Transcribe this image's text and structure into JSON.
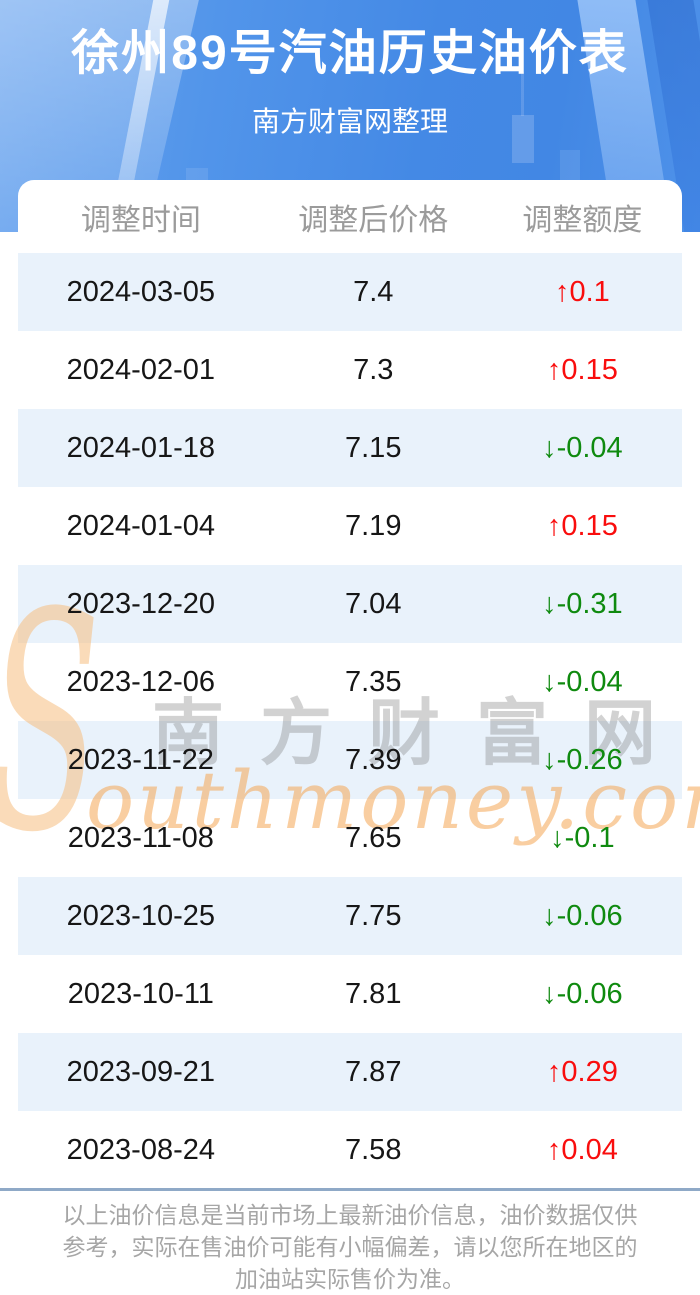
{
  "page": {
    "title": "徐州89号汽油历史油价表",
    "subtitle": "南方财富网整理"
  },
  "table": {
    "columns": [
      "调整时间",
      "调整后价格",
      "调整额度"
    ],
    "up_arrow": "↑",
    "down_arrow": "↓",
    "rows": [
      {
        "date": "2024-03-05",
        "price": "7.4",
        "change": "0.1",
        "direction": "up"
      },
      {
        "date": "2024-02-01",
        "price": "7.3",
        "change": "0.15",
        "direction": "up"
      },
      {
        "date": "2024-01-18",
        "price": "7.15",
        "change": "-0.04",
        "direction": "down"
      },
      {
        "date": "2024-01-04",
        "price": "7.19",
        "change": "0.15",
        "direction": "up"
      },
      {
        "date": "2023-12-20",
        "price": "7.04",
        "change": "-0.31",
        "direction": "down"
      },
      {
        "date": "2023-12-06",
        "price": "7.35",
        "change": "-0.04",
        "direction": "down"
      },
      {
        "date": "2023-11-22",
        "price": "7.39",
        "change": "-0.26",
        "direction": "down"
      },
      {
        "date": "2023-11-08",
        "price": "7.65",
        "change": "-0.1",
        "direction": "down"
      },
      {
        "date": "2023-10-25",
        "price": "7.75",
        "change": "-0.06",
        "direction": "down"
      },
      {
        "date": "2023-10-11",
        "price": "7.81",
        "change": "-0.06",
        "direction": "down"
      },
      {
        "date": "2023-09-21",
        "price": "7.87",
        "change": "0.29",
        "direction": "up"
      },
      {
        "date": "2023-08-24",
        "price": "7.58",
        "change": "0.04",
        "direction": "up"
      }
    ]
  },
  "watermark": {
    "initial": "S",
    "cn": "南方财富网",
    "en": "outhmoney.com"
  },
  "footer": {
    "lines": [
      "以上油价信息是当前市场上最新油价信息，油价数据仅供",
      "参考，实际在售油价可能有小幅偏差，请以您所在地区的",
      "加油站实际售价为准。"
    ]
  },
  "colors": {
    "banner_blue": "#4a8ee8",
    "row_alt_blue": "#e9f2fb",
    "up_red": "#f90d0d",
    "down_green": "#0f8a0f",
    "divider_blue_gray": "#8fa9c7",
    "column_header_gray": "#9b9b9b",
    "footer_gray": "#a6a6a6",
    "watermark_orange": "#f4a654",
    "watermark_gray": "#9a9a9a"
  },
  "chart_data": {
    "type": "table",
    "title": "徐州89号汽油历史油价表",
    "subtitle": "南方财富网整理",
    "columns": [
      "调整时间",
      "调整后价格",
      "调整额度"
    ],
    "rows": [
      [
        "2024-03-05",
        7.4,
        0.1
      ],
      [
        "2024-02-01",
        7.3,
        0.15
      ],
      [
        "2024-01-18",
        7.15,
        -0.04
      ],
      [
        "2024-01-04",
        7.19,
        0.15
      ],
      [
        "2023-12-20",
        7.04,
        -0.31
      ],
      [
        "2023-12-06",
        7.35,
        -0.04
      ],
      [
        "2023-11-22",
        7.39,
        -0.26
      ],
      [
        "2023-11-08",
        7.65,
        -0.1
      ],
      [
        "2023-10-25",
        7.75,
        -0.06
      ],
      [
        "2023-10-11",
        7.81,
        -0.06
      ],
      [
        "2023-09-21",
        7.87,
        0.29
      ],
      [
        "2023-08-24",
        7.58,
        0.04
      ]
    ]
  }
}
